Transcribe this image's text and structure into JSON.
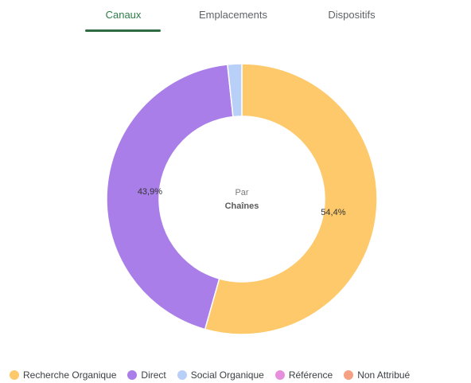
{
  "tabs": [
    {
      "label": "Canaux",
      "active": true
    },
    {
      "label": "Emplacements",
      "active": false
    },
    {
      "label": "Dispositifs",
      "active": false
    }
  ],
  "colors": {
    "active_tab": "#2e7d4a",
    "tab_underline": "#2e6b43"
  },
  "chart_data": {
    "type": "pie",
    "variant": "donut",
    "center_label": {
      "line1": "Par",
      "line2": "Chaînes"
    },
    "slices": [
      {
        "name": "Recherche Organique",
        "value": 54.4,
        "label": "54,4%",
        "color": "#fdc96b"
      },
      {
        "name": "Direct",
        "value": 43.9,
        "label": "43,9%",
        "color": "#a97ee8"
      },
      {
        "name": "Social Organique",
        "value": 1.7,
        "label": "",
        "color": "#b8cff7"
      },
      {
        "name": "Référence",
        "value": 0,
        "label": "",
        "color": "#e68fdc"
      },
      {
        "name": "Non Attribué",
        "value": 0,
        "label": "",
        "color": "#f6a083"
      }
    ],
    "legend_position": "bottom"
  }
}
